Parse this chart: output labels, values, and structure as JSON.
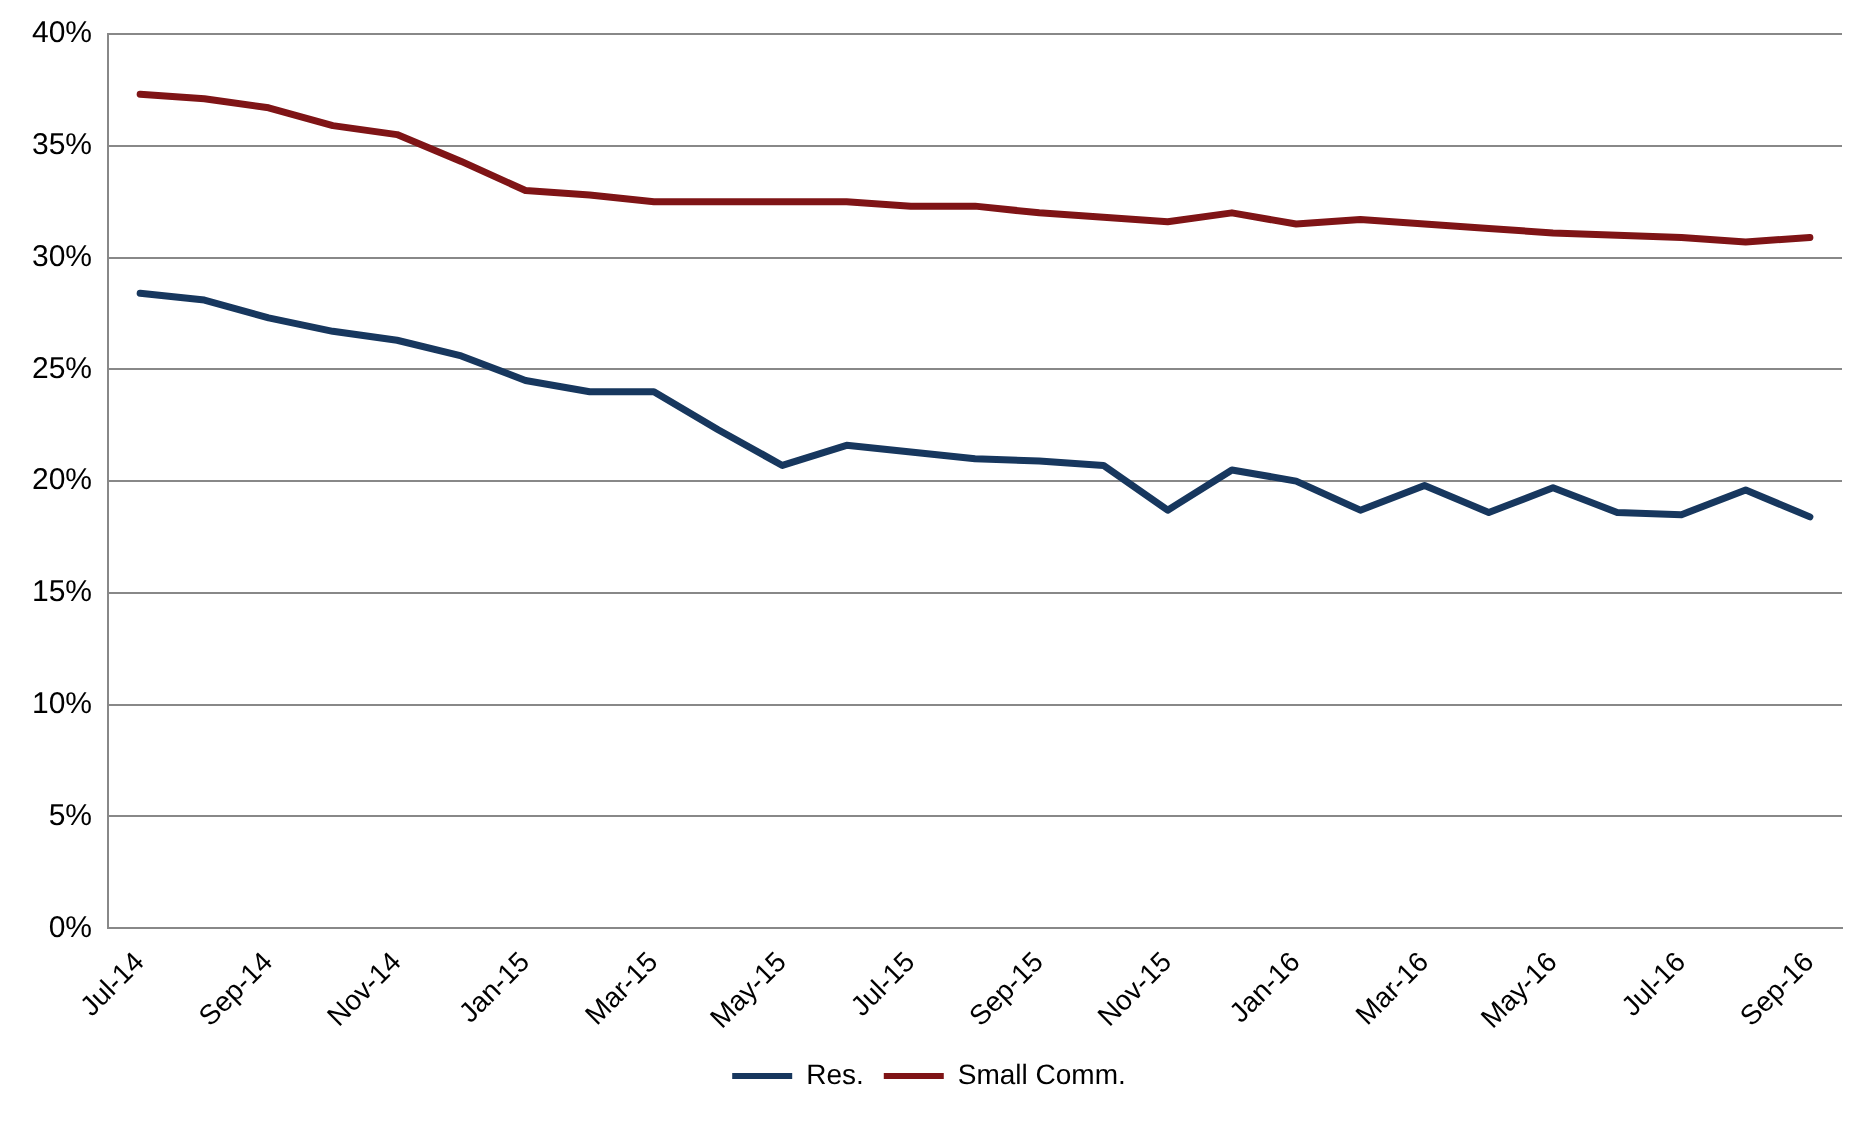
{
  "chart_data": {
    "type": "line",
    "categories": [
      "Jul-14",
      null,
      "Sep-14",
      null,
      "Nov-14",
      null,
      "Jan-15",
      null,
      "Mar-15",
      null,
      "May-15",
      null,
      "Jul-15",
      null,
      "Sep-15",
      null,
      "Nov-15",
      null,
      "Jan-16",
      null,
      "Mar-16",
      null,
      "May-16",
      null,
      "Jul-16",
      null,
      "Sep-16"
    ],
    "series": [
      {
        "name": "Res.",
        "color": "#17375e",
        "values": [
          28.4,
          28.1,
          27.3,
          26.7,
          26.3,
          25.6,
          24.5,
          24.0,
          24.0,
          22.3,
          20.7,
          21.6,
          21.3,
          21.0,
          20.9,
          20.7,
          18.7,
          20.5,
          20.0,
          18.7,
          19.8,
          18.6,
          19.7,
          18.6,
          18.5,
          19.6,
          18.4
        ]
      },
      {
        "name": "Small Comm.",
        "color": "#7f1416",
        "values": [
          37.3,
          37.1,
          36.7,
          35.9,
          35.5,
          34.3,
          33.0,
          32.8,
          32.5,
          32.5,
          32.5,
          32.5,
          32.3,
          32.3,
          32.0,
          31.8,
          31.6,
          32.0,
          31.5,
          31.7,
          31.5,
          31.3,
          31.1,
          31.0,
          30.9,
          30.7,
          30.9
        ]
      }
    ],
    "ylim": [
      0,
      40
    ],
    "yticks": [
      {
        "value": 0,
        "label": "0%"
      },
      {
        "value": 5,
        "label": "5%"
      },
      {
        "value": 10,
        "label": "10%"
      },
      {
        "value": 15,
        "label": "15%"
      },
      {
        "value": 20,
        "label": "20%"
      },
      {
        "value": 25,
        "label": "25%"
      },
      {
        "value": 30,
        "label": "30%"
      },
      {
        "value": 35,
        "label": "35%"
      },
      {
        "value": 40,
        "label": "40%"
      }
    ],
    "grid": "y",
    "legend": "bottom",
    "marker": "none",
    "line_style": "solid"
  }
}
